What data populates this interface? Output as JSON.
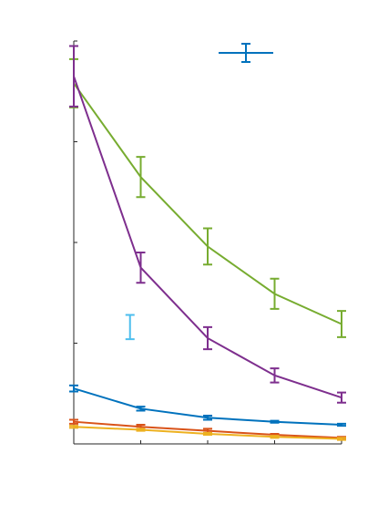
{
  "chart_data": {
    "type": "errorbar-line",
    "x": [
      1,
      2,
      3,
      4,
      5
    ],
    "xlim": [
      1,
      5
    ],
    "xticks": [
      1,
      2,
      3,
      4,
      5
    ],
    "ylim": [
      0,
      4
    ],
    "yticks": [
      0,
      1,
      2,
      3,
      4
    ],
    "legend": "upper right",
    "series": [
      {
        "color": "#77ac30",
        "values": [
          3.58,
          2.65,
          1.96,
          1.49,
          1.19
        ],
        "errors": [
          0.24,
          0.2,
          0.18,
          0.15,
          0.13
        ]
      },
      {
        "color": "#7e2f8e",
        "values": [
          3.65,
          1.75,
          1.05,
          0.68,
          0.46
        ],
        "errors": [
          0.3,
          0.15,
          0.11,
          0.07,
          0.05
        ]
      },
      {
        "color": "#0072bd",
        "values": [
          0.55,
          0.35,
          0.26,
          0.22,
          0.19
        ],
        "errors": [
          0.03,
          0.02,
          0.02,
          0.01,
          0.01
        ],
        "legend": true
      },
      {
        "color": "#d95319",
        "values": [
          0.22,
          0.17,
          0.13,
          0.09,
          0.06
        ],
        "errors": [
          0.02,
          0.02,
          0.02,
          0.01,
          0.01
        ]
      },
      {
        "color": "#edb120",
        "values": [
          0.17,
          0.14,
          0.1,
          0.07,
          0.05
        ],
        "errors": [
          0.01,
          0.01,
          0.01,
          0.01,
          0.01
        ]
      },
      {
        "color": "#4dbeee",
        "x": [
          1.84
        ],
        "values": [
          1.16
        ],
        "errors": [
          0.12
        ],
        "marker_only": true
      }
    ]
  }
}
